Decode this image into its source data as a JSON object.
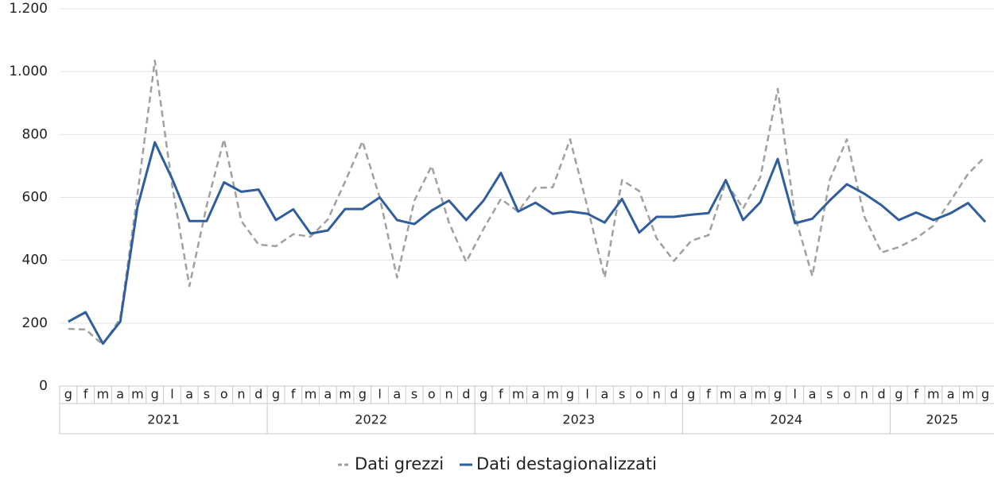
{
  "chart_data": {
    "type": "line",
    "categories": [
      "g",
      "f",
      "m",
      "a",
      "m",
      "g",
      "l",
      "a",
      "s",
      "o",
      "n",
      "d",
      "g",
      "f",
      "m",
      "a",
      "m",
      "g",
      "l",
      "a",
      "s",
      "o",
      "n",
      "d",
      "g",
      "f",
      "m",
      "a",
      "m",
      "g",
      "l",
      "a",
      "s",
      "o",
      "n",
      "d",
      "g",
      "f",
      "m",
      "a",
      "m",
      "g",
      "l",
      "a",
      "s",
      "o",
      "n",
      "d",
      "g",
      "f",
      "m",
      "a",
      "m",
      "g"
    ],
    "years": [
      "2021",
      "2022",
      "2023",
      "2024",
      "2025"
    ],
    "series": [
      {
        "name": "Dati grezzi",
        "color": "#a0a0a0",
        "dash": true,
        "values": [
          182,
          180,
          132,
          215,
          610,
          1035,
          640,
          318,
          575,
          785,
          525,
          450,
          445,
          483,
          475,
          530,
          650,
          778,
          600,
          345,
          590,
          700,
          520,
          395,
          500,
          595,
          555,
          630,
          632,
          785,
          570,
          345,
          655,
          620,
          470,
          398,
          462,
          480,
          650,
          565,
          665,
          945,
          540,
          350,
          655,
          785,
          540,
          425,
          442,
          470,
          510,
          590,
          675,
          730
        ]
      },
      {
        "name": "Dati destagionalizzati",
        "color": "#2f5d9e",
        "dash": false,
        "values": [
          205,
          235,
          135,
          205,
          570,
          775,
          660,
          525,
          525,
          648,
          618,
          625,
          528,
          562,
          485,
          495,
          563,
          563,
          600,
          528,
          515,
          558,
          590,
          528,
          590,
          678,
          555,
          583,
          548,
          555,
          548,
          520,
          595,
          488,
          538,
          538,
          545,
          550,
          655,
          528,
          585,
          722,
          518,
          532,
          590,
          642,
          612,
          575,
          528,
          552,
          528,
          550,
          582,
          522
        ]
      }
    ],
    "ylim": [
      0,
      1200
    ],
    "yticks": [
      0,
      200,
      400,
      600,
      800,
      {
        "value": 1000,
        "label": "1.000"
      },
      {
        "value": 1200,
        "label": "1.200"
      }
    ],
    "grid": true
  }
}
